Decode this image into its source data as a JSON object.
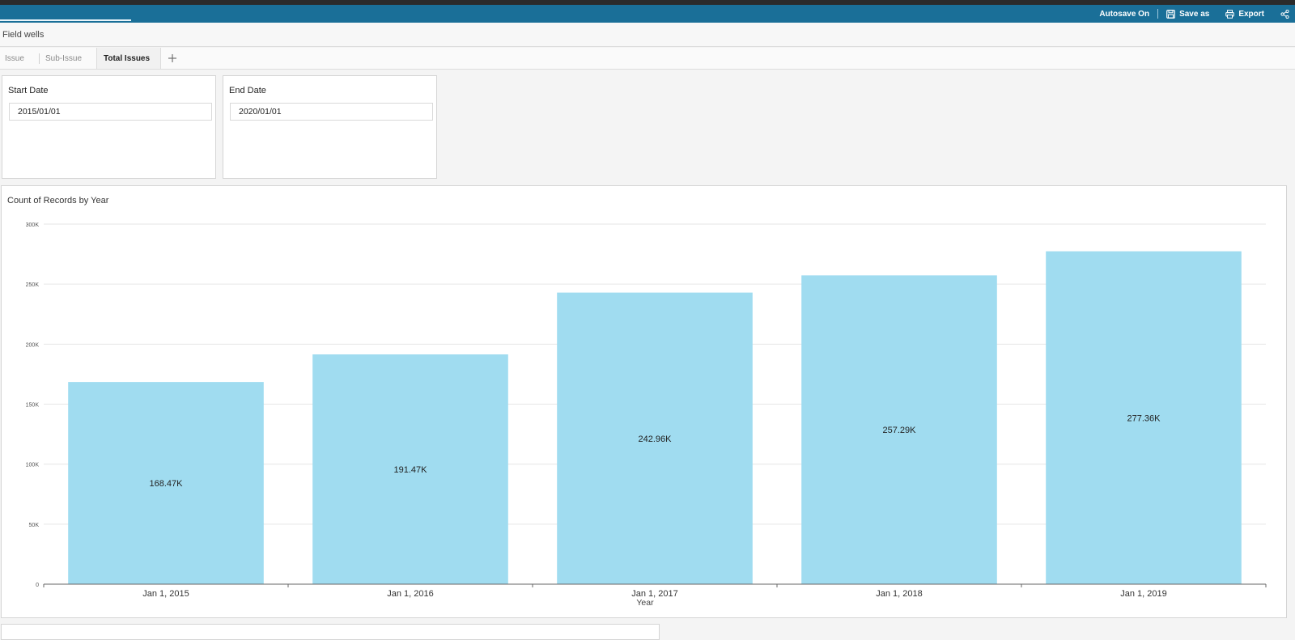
{
  "topbar": {
    "autosave_label": "Autosave On",
    "save_as_label": "Save as",
    "export_label": "Export",
    "accent_color": "#1a6f98"
  },
  "field_wells": {
    "label": "Field wells"
  },
  "tabs": [
    {
      "label": "Issue",
      "active": false
    },
    {
      "label": "Sub-Issue",
      "active": false
    },
    {
      "label": "Total Issues",
      "active": true
    }
  ],
  "controls": {
    "start_date": {
      "label": "Start Date",
      "value": "2015/01/01"
    },
    "end_date": {
      "label": "End Date",
      "value": "2020/01/01"
    }
  },
  "chart_data": {
    "type": "bar",
    "title": "Count of Records by Year",
    "xlabel": "Year",
    "ylabel": "",
    "categories": [
      "Jan 1, 2015",
      "Jan 1, 2016",
      "Jan 1, 2017",
      "Jan 1, 2018",
      "Jan 1, 2019"
    ],
    "values": [
      168470,
      191470,
      242960,
      257290,
      277360
    ],
    "data_labels": [
      "168.47K",
      "191.47K",
      "242.96K",
      "257.29K",
      "277.36K"
    ],
    "yticks": [
      0,
      50000,
      100000,
      150000,
      200000,
      250000,
      300000
    ],
    "ytick_labels": [
      "0",
      "50K",
      "100K",
      "150K",
      "200K",
      "250K",
      "300K"
    ],
    "ylim": [
      0,
      300000
    ],
    "grid": true,
    "legend": "none",
    "bar_color": "#a0dcf0"
  }
}
